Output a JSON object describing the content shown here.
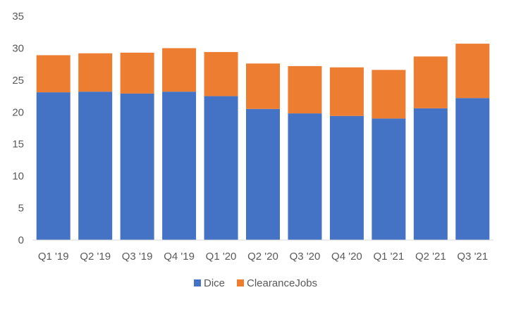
{
  "chart_data": {
    "type": "bar",
    "stacked": true,
    "categories": [
      "Q1 '19",
      "Q2 '19",
      "Q3 '19",
      "Q4 '19",
      "Q1 '20",
      "Q2 '20",
      "Q3 '20",
      "Q4 '20",
      "Q1 '21",
      "Q2 '21",
      "Q3 '21"
    ],
    "series": [
      {
        "name": "Dice",
        "color": "#4472C4",
        "values": [
          23.1,
          23.2,
          22.9,
          23.2,
          22.5,
          20.5,
          19.8,
          19.4,
          19.0,
          20.6,
          22.2
        ]
      },
      {
        "name": "ClearanceJobs",
        "color": "#ED7D31",
        "values": [
          5.8,
          6.0,
          6.4,
          6.8,
          6.9,
          7.1,
          7.4,
          7.6,
          7.6,
          8.1,
          8.5
        ]
      }
    ],
    "title": "",
    "xlabel": "",
    "ylabel": "",
    "ylim": [
      0,
      35
    ],
    "yticks": [
      0,
      5,
      10,
      15,
      20,
      25,
      30,
      35
    ],
    "grid": false,
    "legend_position": "bottom"
  }
}
